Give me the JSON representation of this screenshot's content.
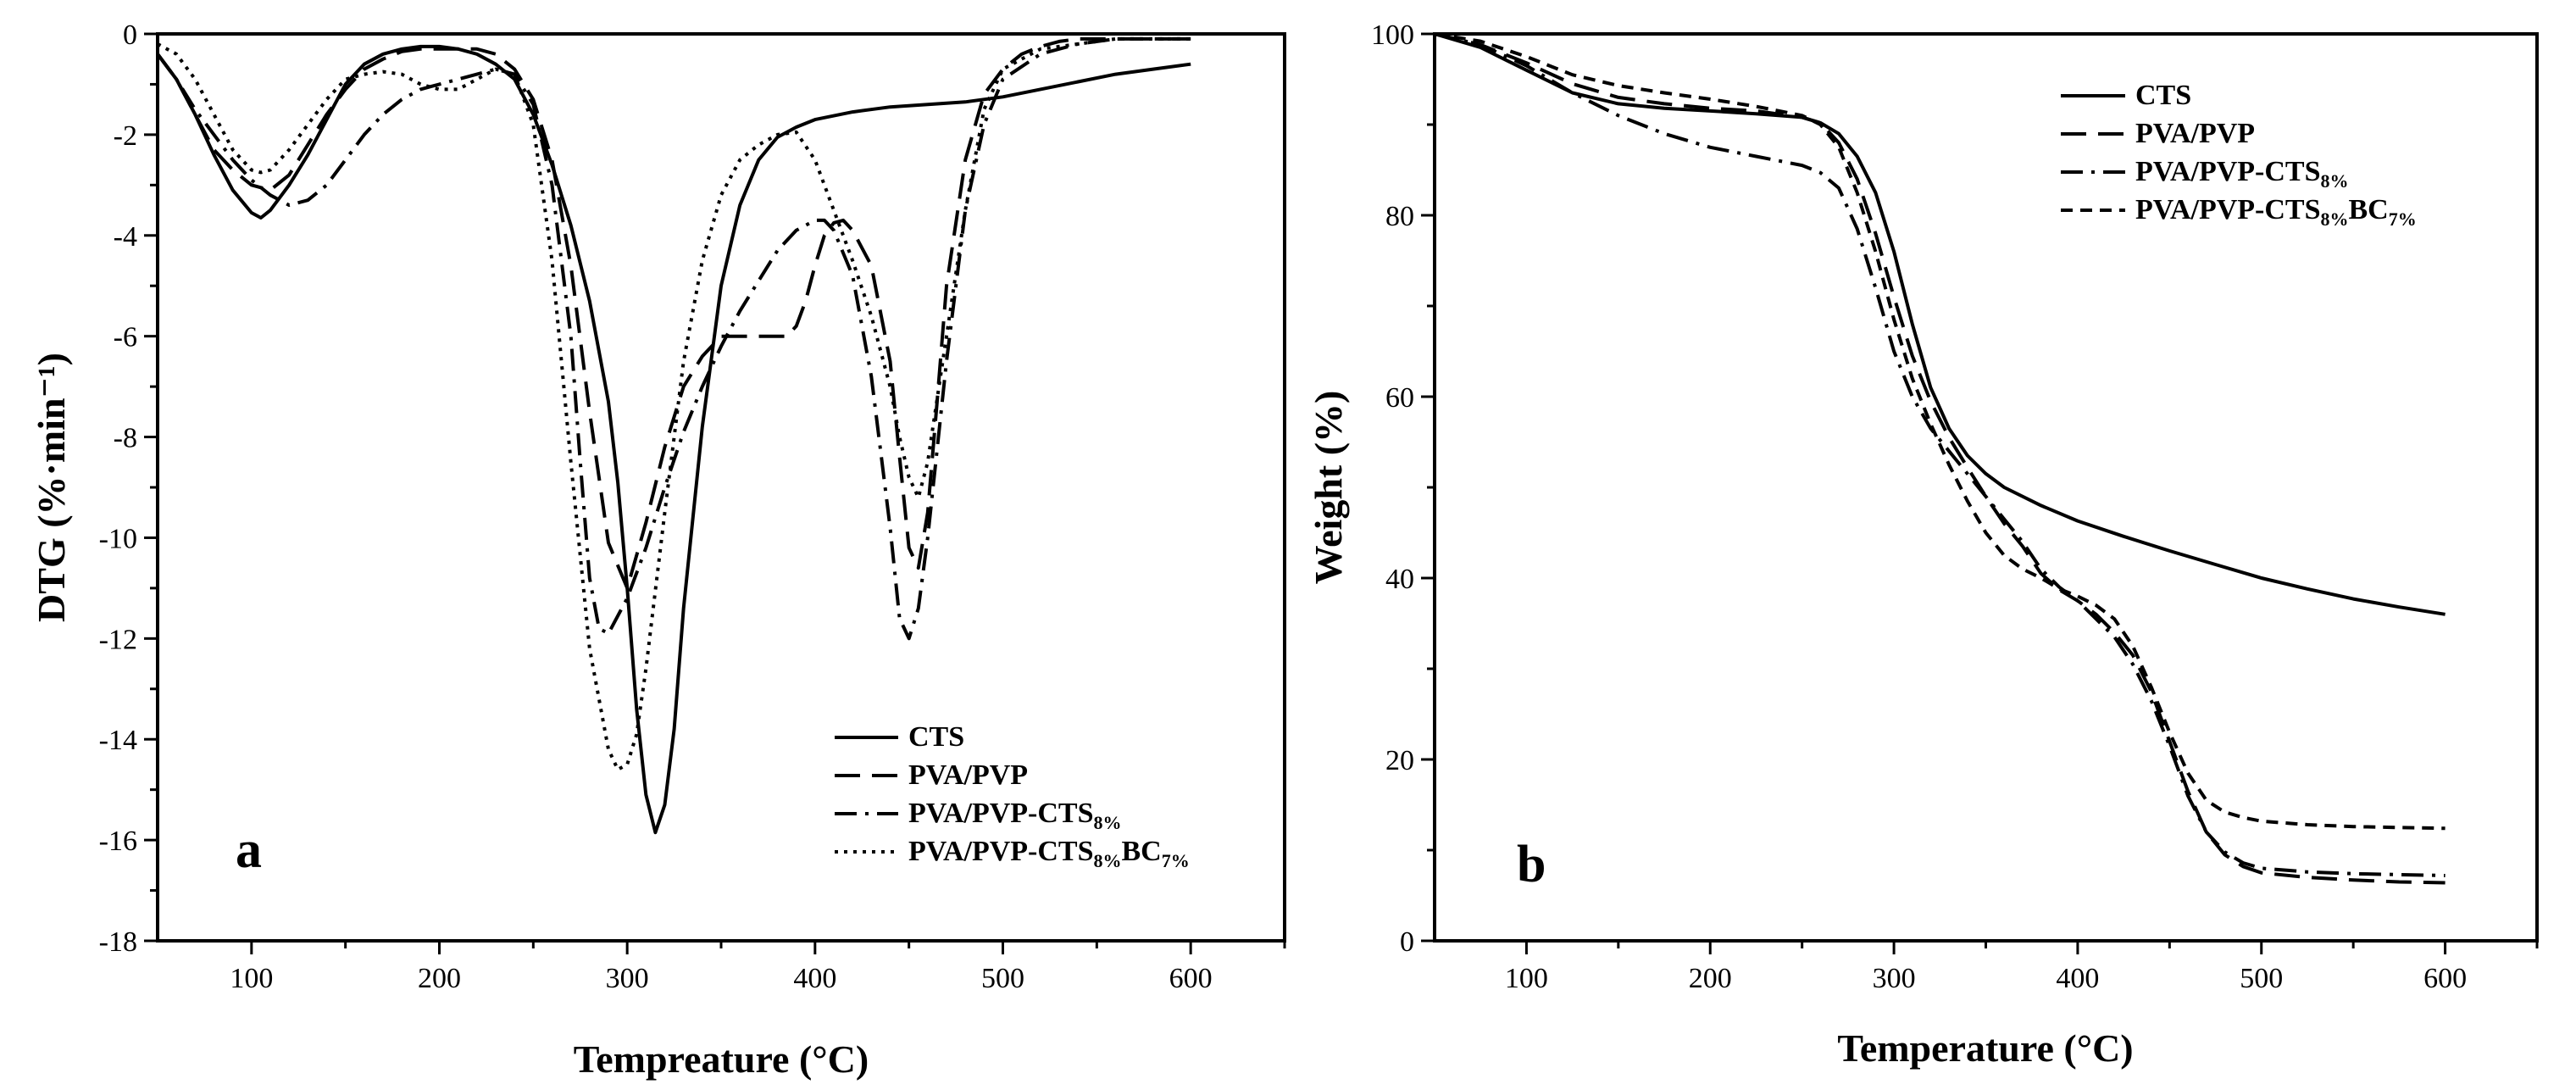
{
  "chart_data": [
    {
      "type": "line",
      "panel": "a",
      "xlabel": "Tempreature (°C)",
      "ylabel": "DTG (%·min⁻¹)",
      "xlim": [
        50,
        650
      ],
      "ylim": [
        -18,
        0
      ],
      "xticks": [
        100,
        200,
        300,
        400,
        500,
        600
      ],
      "yticks": [
        0,
        -2,
        -4,
        -6,
        -8,
        -10,
        -12,
        -14,
        -16,
        -18
      ],
      "legend_position": "bottom-right",
      "series": [
        {
          "name": "CTS",
          "base": "CTS",
          "sub1": "",
          "rest": "",
          "sub2": "",
          "dash": "solid",
          "x": [
            50,
            60,
            70,
            80,
            90,
            100,
            105,
            110,
            120,
            130,
            140,
            150,
            160,
            170,
            180,
            190,
            200,
            210,
            220,
            230,
            240,
            250,
            260,
            270,
            280,
            290,
            295,
            300,
            305,
            310,
            315,
            320,
            325,
            330,
            340,
            350,
            360,
            370,
            380,
            390,
            400,
            420,
            440,
            460,
            480,
            500,
            520,
            540,
            560,
            580,
            600
          ],
          "y": [
            -0.4,
            -0.9,
            -1.6,
            -2.4,
            -3.1,
            -3.55,
            -3.65,
            -3.5,
            -3.0,
            -2.4,
            -1.7,
            -1.0,
            -0.6,
            -0.4,
            -0.3,
            -0.25,
            -0.25,
            -0.3,
            -0.4,
            -0.6,
            -0.9,
            -1.6,
            -2.6,
            -3.8,
            -5.3,
            -7.3,
            -8.9,
            -11.0,
            -13.4,
            -15.1,
            -15.85,
            -15.3,
            -13.8,
            -11.4,
            -7.8,
            -5.0,
            -3.4,
            -2.5,
            -2.05,
            -1.85,
            -1.7,
            -1.55,
            -1.45,
            -1.4,
            -1.35,
            -1.25,
            -1.1,
            -0.95,
            -0.8,
            -0.7,
            -0.6
          ]
        },
        {
          "name": "PVA/PVP",
          "base": "PVA/PVP",
          "sub1": "",
          "rest": "",
          "sub2": "",
          "dash": "dash",
          "x": [
            50,
            60,
            70,
            80,
            90,
            100,
            110,
            120,
            130,
            140,
            150,
            160,
            170,
            180,
            190,
            200,
            210,
            220,
            230,
            240,
            250,
            260,
            270,
            280,
            290,
            300,
            310,
            320,
            330,
            340,
            350,
            360,
            370,
            380,
            385,
            390,
            395,
            400,
            405,
            410,
            415,
            420,
            430,
            440,
            445,
            450,
            455,
            460,
            465,
            470,
            480,
            490,
            500,
            510,
            520,
            530,
            540,
            550,
            560,
            580,
            600
          ],
          "y": [
            -0.4,
            -0.9,
            -1.6,
            -2.3,
            -2.7,
            -3.0,
            -3.1,
            -2.8,
            -2.2,
            -1.6,
            -1.1,
            -0.7,
            -0.5,
            -0.35,
            -0.3,
            -0.3,
            -0.3,
            -0.3,
            -0.4,
            -0.7,
            -1.3,
            -2.5,
            -4.6,
            -7.5,
            -10.1,
            -11.0,
            -9.7,
            -8.2,
            -7.0,
            -6.4,
            -6.0,
            -6.0,
            -6.0,
            -6.0,
            -6.0,
            -5.8,
            -5.3,
            -4.6,
            -4.0,
            -3.75,
            -3.7,
            -3.9,
            -4.6,
            -6.5,
            -8.4,
            -10.2,
            -10.6,
            -9.5,
            -7.3,
            -5.0,
            -2.5,
            -1.2,
            -0.7,
            -0.4,
            -0.25,
            -0.15,
            -0.1,
            -0.1,
            -0.1,
            -0.1,
            -0.1
          ]
        },
        {
          "name": "PVA/PVP-CTS8%",
          "base": "PVA/PVP-CTS",
          "sub1": "8%",
          "rest": "",
          "sub2": "",
          "dash": "dashdot",
          "x": [
            50,
            60,
            70,
            80,
            90,
            100,
            110,
            120,
            130,
            140,
            150,
            160,
            170,
            180,
            190,
            200,
            210,
            220,
            230,
            240,
            250,
            260,
            270,
            275,
            280,
            285,
            290,
            300,
            310,
            320,
            330,
            340,
            350,
            360,
            370,
            380,
            390,
            400,
            405,
            410,
            420,
            430,
            440,
            445,
            450,
            455,
            460,
            470,
            480,
            490,
            500,
            520,
            540,
            560,
            580,
            600
          ],
          "y": [
            -0.4,
            -0.9,
            -1.5,
            -2.0,
            -2.5,
            -2.9,
            -3.2,
            -3.4,
            -3.3,
            -3.0,
            -2.5,
            -2.0,
            -1.6,
            -1.3,
            -1.1,
            -1.0,
            -0.9,
            -0.8,
            -0.7,
            -0.8,
            -1.4,
            -3.0,
            -6.0,
            -8.5,
            -10.8,
            -11.8,
            -11.9,
            -11.2,
            -10.2,
            -9.0,
            -7.9,
            -7.0,
            -6.2,
            -5.5,
            -4.9,
            -4.3,
            -3.9,
            -3.7,
            -3.7,
            -3.9,
            -4.8,
            -6.8,
            -9.8,
            -11.6,
            -12.0,
            -11.4,
            -10.0,
            -6.5,
            -3.5,
            -1.8,
            -0.9,
            -0.4,
            -0.2,
            -0.1,
            -0.1,
            -0.1
          ]
        },
        {
          "name": "PVA/PVP-CTS8%BC7%",
          "base": "PVA/PVP-CTS",
          "sub1": "8%",
          "rest": "BC",
          "sub2": "7%",
          "dash": "dot",
          "x": [
            50,
            60,
            70,
            80,
            90,
            100,
            105,
            110,
            120,
            130,
            140,
            150,
            160,
            170,
            180,
            190,
            200,
            210,
            220,
            230,
            240,
            250,
            260,
            270,
            280,
            290,
            295,
            300,
            305,
            310,
            320,
            330,
            340,
            350,
            360,
            370,
            380,
            390,
            400,
            410,
            420,
            430,
            440,
            445,
            450,
            455,
            460,
            470,
            480,
            490,
            500,
            520,
            540,
            560,
            580,
            600
          ],
          "y": [
            -0.2,
            -0.4,
            -0.9,
            -1.6,
            -2.3,
            -2.7,
            -2.75,
            -2.7,
            -2.3,
            -1.8,
            -1.3,
            -0.9,
            -0.8,
            -0.75,
            -0.8,
            -1.0,
            -1.1,
            -1.1,
            -0.9,
            -0.7,
            -0.8,
            -1.8,
            -4.5,
            -8.5,
            -12.2,
            -14.2,
            -14.6,
            -14.5,
            -13.9,
            -12.6,
            -9.5,
            -6.5,
            -4.5,
            -3.2,
            -2.5,
            -2.2,
            -2.0,
            -1.95,
            -2.5,
            -3.5,
            -4.5,
            -5.6,
            -7.0,
            -8.0,
            -8.8,
            -9.2,
            -8.5,
            -6.0,
            -3.5,
            -1.5,
            -0.7,
            -0.3,
            -0.2,
            -0.1,
            -0.1,
            -0.1
          ]
        }
      ]
    },
    {
      "type": "line",
      "panel": "b",
      "xlabel": "Temperature (°C)",
      "ylabel": "Weight (%)",
      "xlim": [
        50,
        650
      ],
      "ylim": [
        0,
        100
      ],
      "xticks": [
        100,
        200,
        300,
        400,
        500,
        600
      ],
      "yticks": [
        0,
        20,
        40,
        60,
        80,
        100
      ],
      "legend_position": "top-right",
      "series": [
        {
          "name": "CTS",
          "base": "CTS",
          "sub1": "",
          "rest": "",
          "sub2": "",
          "dash": "solid",
          "x": [
            50,
            75,
            100,
            125,
            150,
            175,
            200,
            225,
            250,
            260,
            270,
            280,
            290,
            300,
            310,
            320,
            330,
            340,
            350,
            360,
            380,
            400,
            425,
            450,
            475,
            500,
            525,
            550,
            575,
            600
          ],
          "y": [
            100,
            98.5,
            96,
            93.5,
            92.3,
            91.8,
            91.5,
            91.2,
            90.8,
            90.2,
            89,
            86.5,
            82.5,
            76,
            68,
            61,
            56.5,
            53.5,
            51.5,
            50,
            48,
            46.3,
            44.6,
            43,
            41.5,
            40,
            38.8,
            37.7,
            36.8,
            36
          ]
        },
        {
          "name": "PVA/PVP",
          "base": "PVA/PVP",
          "sub1": "",
          "rest": "",
          "sub2": "",
          "dash": "dash",
          "x": [
            50,
            75,
            100,
            125,
            150,
            175,
            200,
            225,
            250,
            260,
            270,
            280,
            290,
            300,
            310,
            320,
            330,
            340,
            350,
            360,
            370,
            380,
            390,
            400,
            410,
            420,
            430,
            440,
            450,
            460,
            470,
            480,
            490,
            500,
            525,
            550,
            575,
            600
          ],
          "y": [
            100,
            98.8,
            96.8,
            94.5,
            93,
            92.3,
            91.8,
            91.5,
            90.8,
            90.2,
            88,
            84,
            78,
            71,
            64.5,
            59.5,
            55.5,
            52.2,
            49,
            46,
            43.5,
            40.5,
            38.7,
            37.5,
            36,
            34,
            31.5,
            27.5,
            22,
            16.5,
            12,
            9.5,
            8.2,
            7.5,
            7,
            6.7,
            6.5,
            6.4
          ]
        },
        {
          "name": "PVA/PVP-CTS8%",
          "base": "PVA/PVP-CTS",
          "sub1": "8%",
          "rest": "",
          "sub2": "",
          "dash": "dashdot",
          "x": [
            50,
            75,
            100,
            125,
            150,
            175,
            200,
            225,
            250,
            260,
            270,
            280,
            290,
            300,
            310,
            320,
            330,
            340,
            350,
            360,
            370,
            380,
            390,
            400,
            410,
            420,
            430,
            440,
            450,
            460,
            470,
            480,
            490,
            500,
            525,
            550,
            575,
            600
          ],
          "y": [
            100,
            98.8,
            96.5,
            93.5,
            91,
            89,
            87.5,
            86.5,
            85.5,
            84.7,
            83,
            78.5,
            72,
            65,
            60,
            56.5,
            54,
            51.5,
            49,
            46.5,
            44,
            41,
            39,
            37.5,
            35.5,
            33.5,
            30.5,
            26.5,
            21.5,
            16,
            12,
            9.8,
            8.6,
            8,
            7.6,
            7.4,
            7.3,
            7.2
          ]
        },
        {
          "name": "PVA/PVP-CTS8%BC7%",
          "base": "PVA/PVP-CTS",
          "sub1": "8%",
          "rest": "BC",
          "sub2": "7%",
          "dash": "shortdash",
          "x": [
            50,
            75,
            100,
            125,
            150,
            175,
            200,
            225,
            250,
            260,
            270,
            280,
            290,
            300,
            310,
            320,
            330,
            340,
            350,
            360,
            370,
            380,
            390,
            400,
            410,
            420,
            430,
            440,
            450,
            460,
            470,
            480,
            490,
            500,
            525,
            550,
            575,
            600
          ],
          "y": [
            100,
            99.2,
            97.5,
            95.5,
            94.3,
            93.5,
            92.8,
            92,
            91,
            90,
            87.5,
            82.5,
            76,
            68.5,
            62,
            57,
            52.5,
            48.5,
            45,
            42.5,
            41,
            40,
            38.8,
            38,
            37,
            35.5,
            32.5,
            28,
            23,
            18.5,
            15.5,
            14.2,
            13.6,
            13.2,
            12.8,
            12.6,
            12.5,
            12.4
          ]
        }
      ]
    }
  ]
}
